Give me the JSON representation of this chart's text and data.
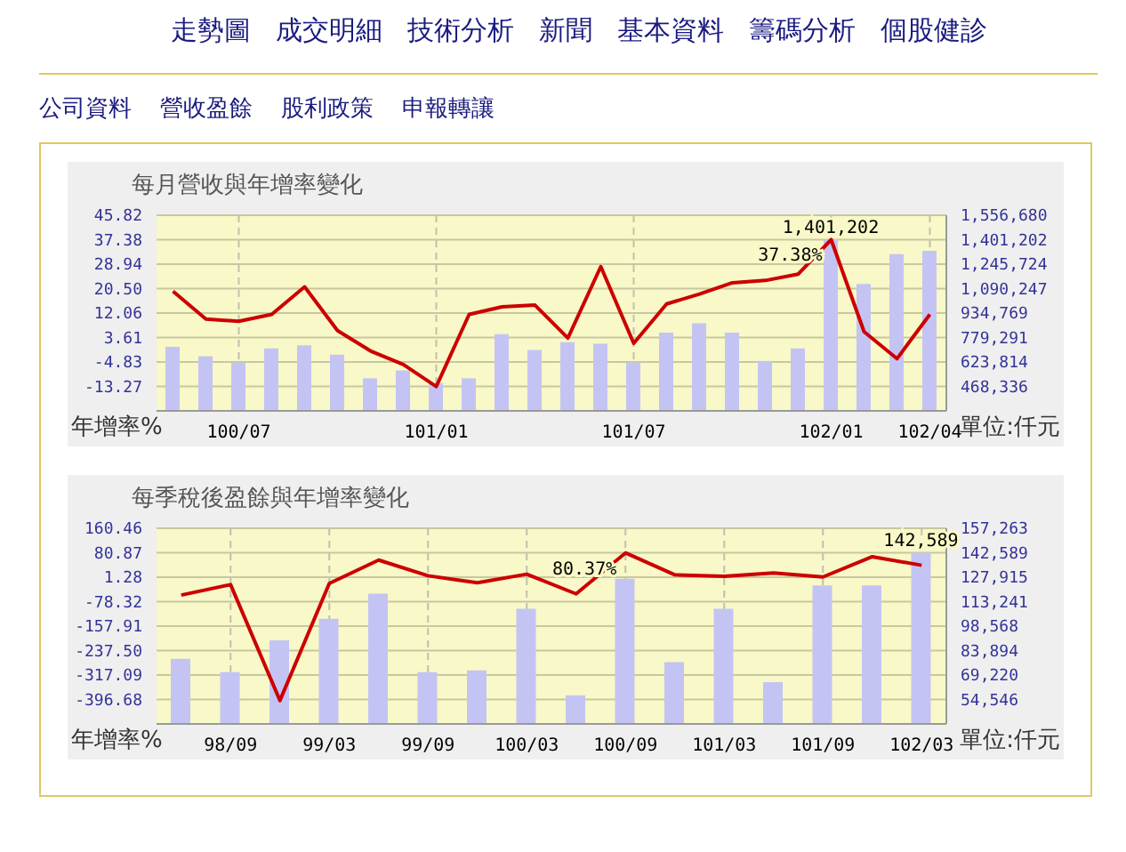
{
  "chart_data": [
    {
      "type": "bar",
      "title": "每月營收與年增率變化",
      "ylabel": "年增率%",
      "y2label": "單位:仟元",
      "annotations": [
        "走勢圖",
        "成交明細",
        "技術分析",
        "新聞",
        "基本資料",
        "籌碼分析",
        "個股健診",
        "公司資料",
        "營收盈餘",
        "股利政策",
        "申報轉讓"
      ],
      "categories": [
        null,
        null,
        "100/07",
        null,
        null,
        null,
        null,
        null,
        "101/01",
        null,
        null,
        null,
        null,
        null,
        "101/07",
        null,
        null,
        null,
        null,
        null,
        "102/01",
        null,
        null,
        "102/04"
      ],
      "series": [
        {
          "axis": "y2",
          "color": "#c4c4f4",
          "values": [
            720000,
            660000,
            620000,
            710000,
            730000,
            670000,
            520000,
            570000,
            490000,
            520000,
            800000,
            700000,
            750000,
            740000,
            620000,
            810000,
            870000,
            810000,
            630000,
            710000,
            1401202,
            1120000,
            1310000,
            1330000
          ],
          "value_labels": [
            null,
            null,
            null,
            null,
            null,
            null,
            null,
            null,
            null,
            null,
            null,
            null,
            null,
            null,
            null,
            null,
            null,
            null,
            null,
            null,
            "1,401,202",
            null,
            null,
            null
          ]
        },
        {
          "type": "line",
          "color": "#cc0000",
          "values": [
            19.6,
            10.0,
            9.2,
            11.6,
            21.1,
            6.0,
            -1.0,
            -5.7,
            -13.3,
            11.6,
            14.2,
            14.8,
            3.4,
            28.1,
            1.6,
            15.2,
            18.6,
            22.5,
            23.3,
            25.5,
            37.38,
            5.6,
            -3.7,
            11.6
          ],
          "value_labels": [
            null,
            null,
            null,
            null,
            null,
            null,
            null,
            null,
            null,
            null,
            null,
            null,
            null,
            null,
            null,
            null,
            null,
            null,
            null,
            null,
            "37.38%",
            null,
            null,
            null
          ]
        }
      ],
      "ylim": [
        -21.71,
        45.82
      ],
      "yticks": [
        -13.27,
        -4.83,
        3.61,
        12.06,
        {
          "value": 20.5,
          "label": "20.50"
        },
        28.94,
        37.38,
        45.82
      ],
      "y2lim": [
        312858,
        1556680
      ],
      "y2ticks": [
        {
          "value": 468336,
          "label": "468,336"
        },
        {
          "value": 623814,
          "label": "623,814"
        },
        {
          "value": 779291,
          "label": "779,291"
        },
        {
          "value": 934769,
          "label": "934,769"
        },
        {
          "value": 1090247,
          "label": "1,090,247"
        },
        {
          "value": 1245724,
          "label": "1,245,724"
        },
        {
          "value": 1401202,
          "label": "1,401,202"
        },
        {
          "value": 1556680,
          "label": "1,556,680"
        }
      ],
      "grid": true,
      "legend": false,
      "marker": "none",
      "line_style": "solid"
    },
    {
      "type": "bar",
      "title": "每季稅後盈餘與年增率變化",
      "ylabel": "年增率%",
      "y2label": "單位:仟元",
      "categories": [
        null,
        "98/09",
        null,
        "99/03",
        null,
        "99/09",
        null,
        "100/03",
        null,
        "100/09",
        null,
        "101/03",
        null,
        "101/09",
        null,
        "102/03"
      ],
      "series": [
        {
          "axis": "y2",
          "color": "#c4c4f4",
          "values": [
            79000,
            71000,
            90000,
            103000,
            118000,
            71000,
            72000,
            109000,
            57000,
            127000,
            77000,
            109000,
            65000,
            123000,
            123000,
            142589
          ],
          "value_labels": [
            null,
            null,
            null,
            null,
            null,
            null,
            null,
            null,
            null,
            null,
            null,
            null,
            null,
            null,
            null,
            "142,589"
          ]
        },
        {
          "type": "line",
          "color": "#cc0000",
          "values": [
            -57,
            -23,
            -400,
            -19,
            57,
            6,
            -17,
            11,
            -53,
            80.37,
            9,
            4,
            15,
            2,
            68,
            40
          ],
          "value_labels": [
            null,
            null,
            null,
            null,
            null,
            null,
            null,
            null,
            null,
            "80.37%",
            null,
            null,
            null,
            null,
            null,
            null
          ]
        }
      ],
      "ylim": [
        -476.27,
        160.46
      ],
      "yticks": [
        -396.68,
        -317.09,
        {
          "value": -237.5,
          "label": "-237.50"
        },
        -157.91,
        -78.32,
        1.28,
        80.87,
        160.46
      ],
      "y2lim": [
        39872,
        157263
      ],
      "y2ticks": [
        {
          "value": 54546,
          "label": "54,546"
        },
        {
          "value": 69220,
          "label": "69,220"
        },
        {
          "value": 83894,
          "label": "83,894"
        },
        {
          "value": 98568,
          "label": "98,568"
        },
        {
          "value": 113241,
          "label": "113,241"
        },
        {
          "value": 127915,
          "label": "127,915"
        },
        {
          "value": 142589,
          "label": "142,589"
        },
        {
          "value": 157263,
          "label": "157,263"
        }
      ],
      "grid": true,
      "legend": false,
      "marker": "none",
      "line_style": "solid"
    }
  ]
}
